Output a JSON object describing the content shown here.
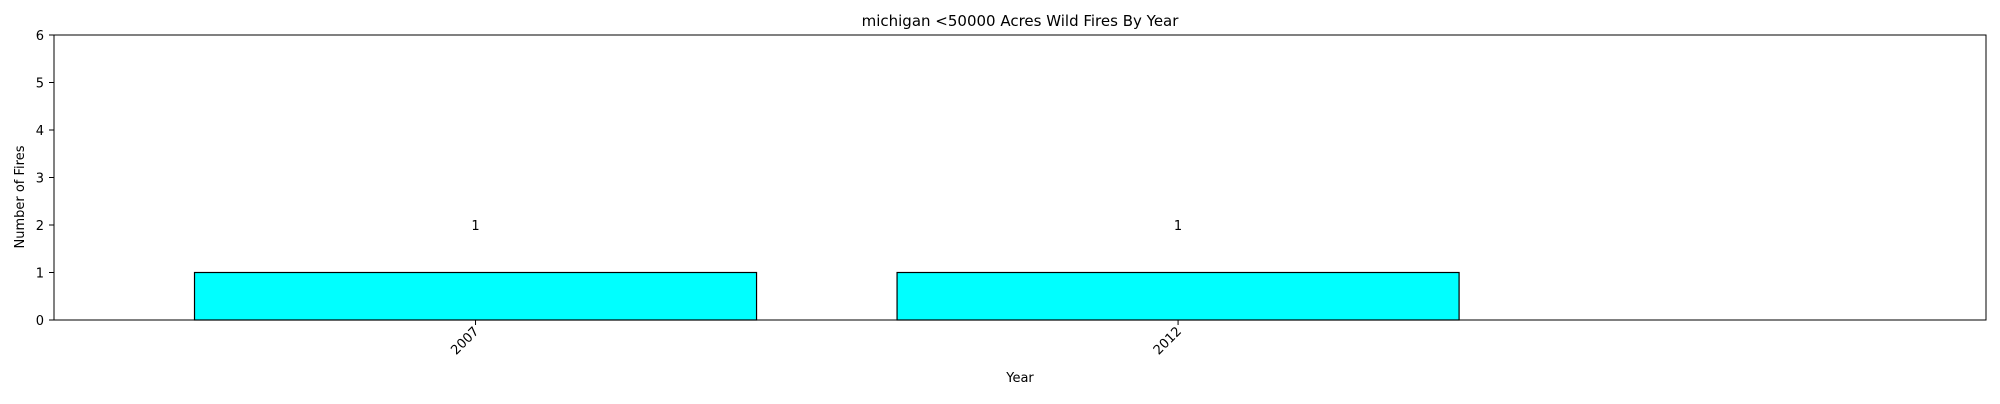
{
  "chart_data": {
    "type": "bar",
    "title": "michigan <50000 Acres Wild Fires By Year",
    "xlabel": "Year",
    "ylabel": "Number of Fires",
    "categories": [
      "2007",
      "2012"
    ],
    "values": [
      1,
      1
    ],
    "data_labels": [
      "1",
      "1"
    ],
    "ylim": [
      0,
      6
    ],
    "yticks": [
      0,
      1,
      2,
      3,
      4,
      5,
      6
    ],
    "x_tick_rotation_deg": 45,
    "grid": false,
    "legend": "none",
    "bar_color": "#00ffff",
    "bar_edge_color": "#000000"
  }
}
